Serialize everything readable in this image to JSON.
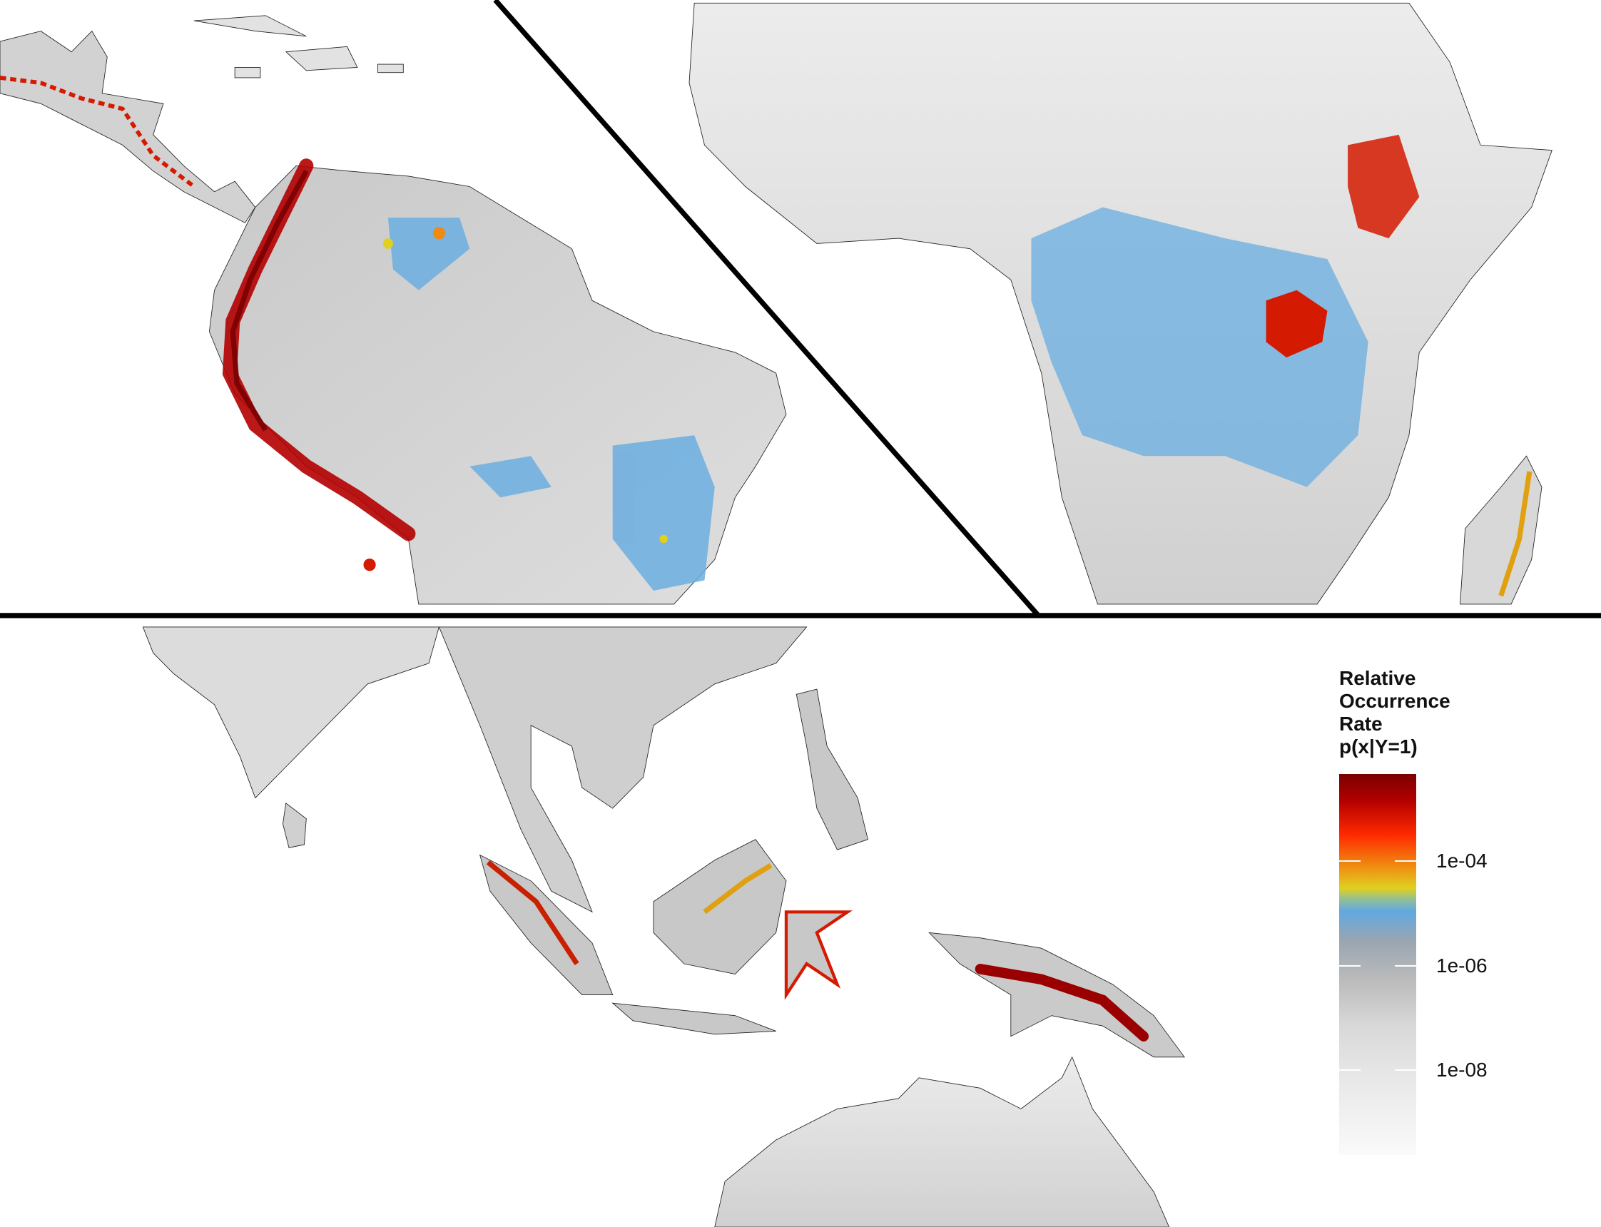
{
  "legend": {
    "title": "Relative\nOccurrence\nRate\np(x|Y=1)",
    "ticks": [
      {
        "label": "1e-04",
        "value": 0.0001
      },
      {
        "label": "1e-06",
        "value": 1e-06
      },
      {
        "label": "1e-08",
        "value": 1e-08
      }
    ],
    "colors": [
      "#7a0000",
      "#ff2a00",
      "#e0d020",
      "#62a8e0",
      "#bdbdbd",
      "#fafafa"
    ]
  },
  "panels": [
    {
      "region": "Central and South America"
    },
    {
      "region": "Africa and Madagascar"
    },
    {
      "region": "South and Southeast Asia, New Guinea, northern Australia"
    }
  ],
  "colors": {
    "land_low": "#d4d4d4",
    "land_mid": "#bdbdbd",
    "blue": "#6aaee0",
    "red": "#d41a00",
    "dark_red": "#8a0000",
    "yellow": "#e8d020",
    "divider": "#000000"
  }
}
